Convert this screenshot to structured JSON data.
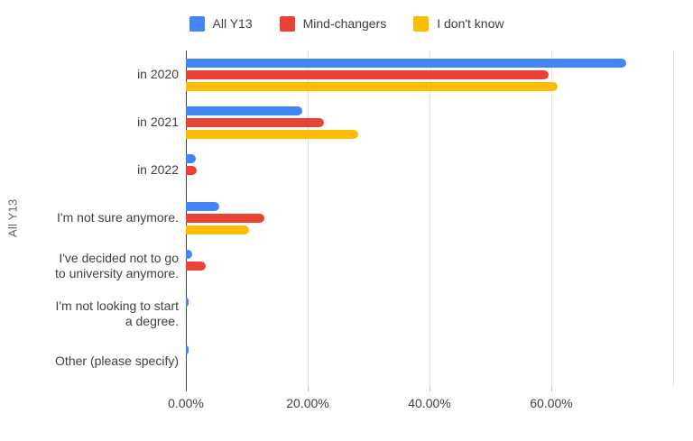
{
  "legend": {
    "items": [
      {
        "label": "All Y13",
        "color": "#4285F4"
      },
      {
        "label": "Mind-changers",
        "color": "#EA4335"
      },
      {
        "label": "I don't know",
        "color": "#FBBC04"
      }
    ]
  },
  "chart_data": {
    "type": "bar",
    "orientation": "horizontal",
    "ylabel": "All Y13",
    "xlabel": "",
    "legend_position": "top",
    "grid": true,
    "xlim": [
      0,
      83
    ],
    "gridline_values": [
      20,
      40,
      60,
      80
    ],
    "x_ticks": [
      {
        "value": 0,
        "label": "0.00%"
      },
      {
        "value": 20,
        "label": "20.00%"
      },
      {
        "value": 40,
        "label": "40.00%"
      },
      {
        "value": 60,
        "label": "60.00%"
      }
    ],
    "categories": [
      "in 2020",
      "in 2021",
      "in 2022",
      "I'm not sure anymore.",
      "I've decided not to go to university anymore.",
      "I'm not looking to start a degree.",
      "Other (please specify)"
    ],
    "series": [
      {
        "name": "All Y13",
        "color": "#4285F4",
        "values": [
          72.3,
          19.1,
          1.6,
          5.5,
          1.0,
          0.5,
          0.5
        ]
      },
      {
        "name": "Mind-changers",
        "color": "#EA4335",
        "values": [
          59.5,
          22.6,
          1.8,
          12.9,
          3.3,
          0,
          0
        ]
      },
      {
        "name": "I don't know",
        "color": "#FBBC04",
        "values": [
          61.0,
          28.3,
          0,
          10.3,
          0,
          0,
          0
        ]
      }
    ]
  },
  "colors": {
    "gridline": "#e3e3e3",
    "axis_line": "#424242",
    "text": "#3c4043"
  }
}
